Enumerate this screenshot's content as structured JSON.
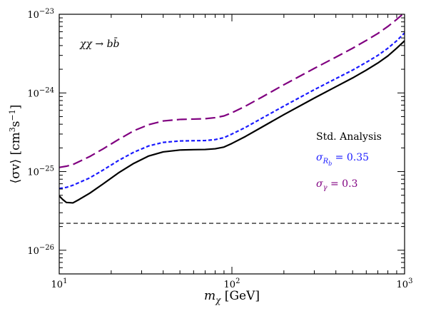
{
  "chart_data": {
    "type": "line",
    "title": "",
    "xlabel": "m_χ [GeV]",
    "ylabel": "⟨σv⟩ [cm³s⁻¹]",
    "xscale": "log",
    "yscale": "log",
    "xlim": [
      10,
      1000
    ],
    "ylim": [
      5e-27,
      1e-23
    ],
    "x_ticks": [
      {
        "base": "10",
        "exp": "1"
      },
      {
        "base": "10",
        "exp": "2"
      },
      {
        "base": "10",
        "exp": "3"
      }
    ],
    "y_ticks": [
      {
        "base": "10",
        "exp": "−26",
        "value": 1e-26
      },
      {
        "base": "10",
        "exp": "−25",
        "value": 1e-25
      },
      {
        "base": "10",
        "exp": "−24",
        "value": 1e-24
      },
      {
        "base": "10",
        "exp": "−23",
        "value": 1e-23
      }
    ],
    "process_label": "χχ → bb̄",
    "legend": {
      "placement": "right-middle",
      "entries": [
        {
          "text": "Std. Analysis",
          "color": "#000000"
        },
        {
          "text": "σ_Rb = 0.35",
          "color": "#1a1aff"
        },
        {
          "text": "σ_γ = 0.3",
          "color": "#800080"
        }
      ]
    },
    "series": [
      {
        "color": "#000000",
        "style": "solid",
        "points": [
          [
            10,
            4.9e-26
          ],
          [
            10.5,
            4.4e-26
          ],
          [
            11,
            4.05e-26
          ],
          [
            12,
            4e-26
          ],
          [
            13,
            4.4e-26
          ],
          [
            15,
            5.3e-26
          ],
          [
            18,
            7e-26
          ],
          [
            22,
            9.6e-26
          ],
          [
            27,
            1.27e-25
          ],
          [
            33,
            1.58e-25
          ],
          [
            40,
            1.78e-25
          ],
          [
            50,
            1.88e-25
          ],
          [
            60,
            1.9e-25
          ],
          [
            70,
            1.91e-25
          ],
          [
            80,
            1.95e-25
          ],
          [
            90,
            2.05e-25
          ],
          [
            100,
            2.28e-25
          ],
          [
            120,
            2.8e-25
          ],
          [
            150,
            3.7e-25
          ],
          [
            200,
            5.3e-25
          ],
          [
            300,
            8.6e-25
          ],
          [
            400,
            1.2e-24
          ],
          [
            500,
            1.55e-24
          ],
          [
            600,
            1.95e-24
          ],
          [
            700,
            2.4e-24
          ],
          [
            800,
            2.95e-24
          ],
          [
            900,
            3.7e-24
          ],
          [
            1000,
            4.6e-24
          ]
        ]
      },
      {
        "color": "#1a1aff",
        "style": "dashed",
        "points": [
          [
            10,
            6.1e-26
          ],
          [
            11,
            6.3e-26
          ],
          [
            12,
            6.7e-26
          ],
          [
            15,
            8.3e-26
          ],
          [
            18,
            1.05e-25
          ],
          [
            22,
            1.38e-25
          ],
          [
            27,
            1.76e-25
          ],
          [
            33,
            2.12e-25
          ],
          [
            40,
            2.35e-25
          ],
          [
            50,
            2.45e-25
          ],
          [
            60,
            2.47e-25
          ],
          [
            70,
            2.48e-25
          ],
          [
            80,
            2.55e-25
          ],
          [
            90,
            2.7e-25
          ],
          [
            100,
            3e-25
          ],
          [
            120,
            3.65e-25
          ],
          [
            150,
            4.8e-25
          ],
          [
            200,
            6.8e-25
          ],
          [
            300,
            1.1e-24
          ],
          [
            400,
            1.52e-24
          ],
          [
            500,
            1.95e-24
          ],
          [
            600,
            2.45e-24
          ],
          [
            700,
            3e-24
          ],
          [
            800,
            3.7e-24
          ],
          [
            900,
            4.6e-24
          ],
          [
            1000,
            5.8e-24
          ]
        ]
      },
      {
        "color": "#800080",
        "style": "longdash",
        "points": [
          [
            10,
            1.13e-25
          ],
          [
            11,
            1.17e-25
          ],
          [
            12,
            1.23e-25
          ],
          [
            15,
            1.55e-25
          ],
          [
            18,
            1.95e-25
          ],
          [
            22,
            2.55e-25
          ],
          [
            27,
            3.3e-25
          ],
          [
            33,
            3.95e-25
          ],
          [
            40,
            4.4e-25
          ],
          [
            50,
            4.6e-25
          ],
          [
            60,
            4.65e-25
          ],
          [
            70,
            4.7e-25
          ],
          [
            80,
            4.85e-25
          ],
          [
            90,
            5.1e-25
          ],
          [
            100,
            5.6e-25
          ],
          [
            120,
            6.8e-25
          ],
          [
            150,
            8.9e-25
          ],
          [
            200,
            1.27e-24
          ],
          [
            300,
            2.05e-24
          ],
          [
            400,
            2.85e-24
          ],
          [
            500,
            3.7e-24
          ],
          [
            600,
            4.65e-24
          ],
          [
            700,
            5.7e-24
          ],
          [
            800,
            7e-24
          ],
          [
            900,
            8.6e-24
          ],
          [
            1000,
            1.05e-23
          ]
        ]
      },
      {
        "color": "#000000",
        "style": "shortdash",
        "points": [
          [
            10,
            2.2e-26
          ],
          [
            1000,
            2.2e-26
          ]
        ]
      }
    ]
  }
}
